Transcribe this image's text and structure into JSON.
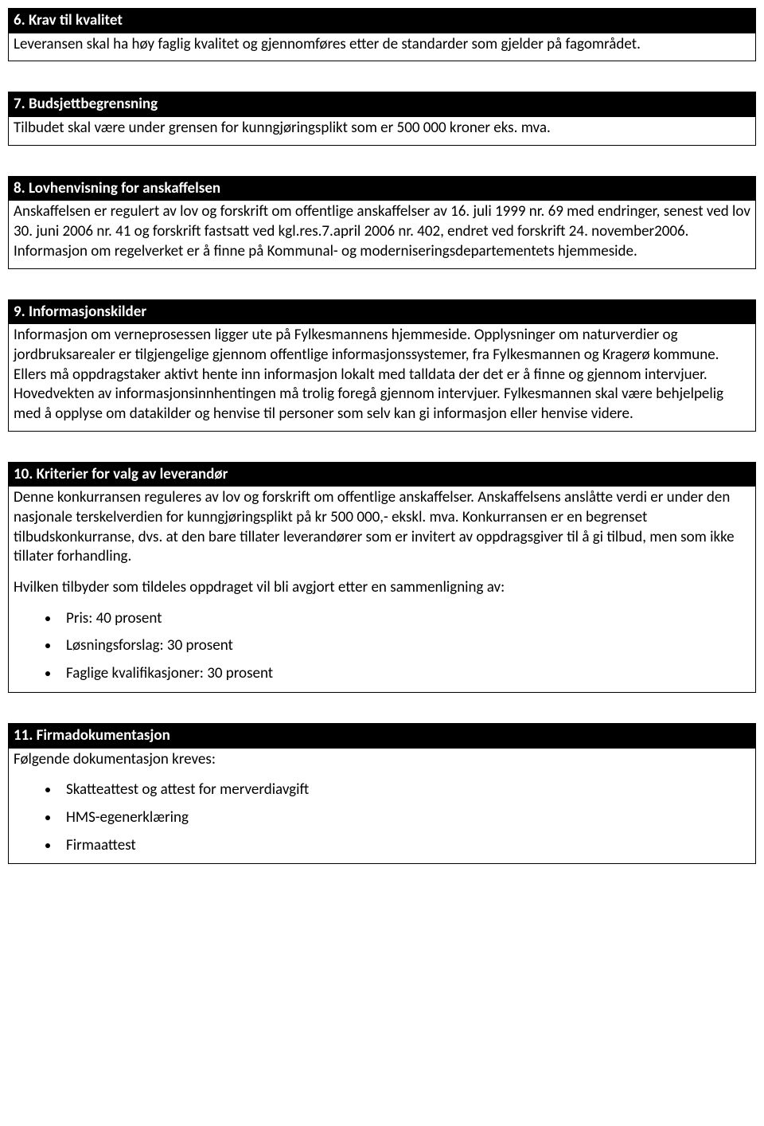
{
  "sections": [
    {
      "title": "6. Krav til kvalitet",
      "paragraphs": [
        "Leveransen skal ha høy faglig kvalitet og gjennomføres etter de standarder som gjelder på fagområdet."
      ]
    },
    {
      "title": "7. Budsjettbegrensning",
      "paragraphs": [
        "Tilbudet skal være under grensen for kunngjøringsplikt som er 500 000 kroner eks. mva."
      ]
    },
    {
      "title": "8. Lovhenvisning for anskaffelsen",
      "paragraphs": [
        "Anskaffelsen er regulert av lov og forskrift om offentlige anskaffelser av 16. juli 1999 nr. 69 med endringer, senest ved lov 30. juni 2006 nr. 41 og forskrift fastsatt ved kgl.res.7.april 2006 nr. 402, endret ved forskrift 24. november2006. Informasjon om regelverket er å finne på Kommunal- og moderniseringsdepartementets hjemmeside."
      ]
    },
    {
      "title": "9. Informasjonskilder",
      "paragraphs": [
        "Informasjon om verneprosessen ligger ute på Fylkesmannens hjemmeside. Opplysninger om naturverdier og jordbruksarealer er tilgjengelige gjennom offentlige informasjonssystemer, fra Fylkesmannen og Kragerø kommune. Ellers må oppdragstaker aktivt hente inn informasjon lokalt med talldata der det er å finne og gjennom intervjuer. Hovedvekten av informasjonsinnhentingen må trolig foregå gjennom intervjuer. Fylkesmannen skal være behjelpelig med å opplyse om datakilder og henvise til personer som selv kan gi informasjon eller henvise videre."
      ]
    },
    {
      "title": "10. Kriterier for valg av leverandør",
      "paragraphs": [
        "Denne konkurransen reguleres av lov og forskrift om offentlige anskaffelser. Anskaffelsens anslåtte verdi er under den nasjonale terskelverdien for kunngjøringsplikt på kr 500 000,- ekskl. mva. Konkurransen er en begrenset tilbudskonkurranse, dvs. at den bare tillater leverandører som er invitert av oppdragsgiver til å gi tilbud, men som ikke tillater forhandling.",
        "Hvilken tilbyder som tildeles oppdraget vil bli avgjort etter en sammenligning av:"
      ],
      "bullets": [
        "Pris: 40 prosent",
        "Løsningsforslag: 30 prosent",
        "Faglige kvalifikasjoner: 30 prosent"
      ]
    },
    {
      "title": "11. Firmadokumentasjon",
      "paragraphs": [
        "Følgende dokumentasjon kreves:"
      ],
      "bullets": [
        "Skatteattest og attest for merverdiavgift",
        "HMS-egenerklæring",
        " Firmaattest"
      ]
    }
  ]
}
